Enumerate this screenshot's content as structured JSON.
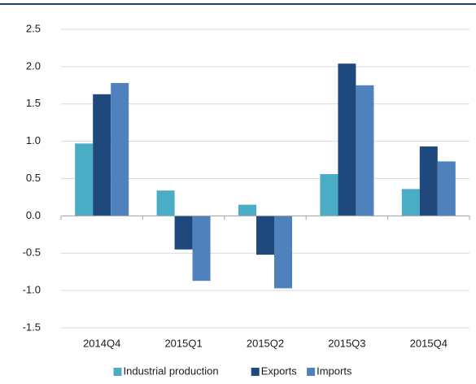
{
  "chart_data": {
    "type": "bar",
    "categories": [
      "2014Q4",
      "2015Q1",
      "2015Q2",
      "2015Q3",
      "2015Q4"
    ],
    "series": [
      {
        "name": "Industrial production",
        "color": "#4bacc6",
        "values": [
          0.97,
          0.34,
          0.15,
          0.56,
          0.36
        ]
      },
      {
        "name": "Exports",
        "color": "#1f497d",
        "values": [
          1.63,
          -0.45,
          -0.52,
          2.04,
          0.93
        ]
      },
      {
        "name": "Imports",
        "color": "#4f81bd",
        "values": [
          1.78,
          -0.87,
          -0.97,
          1.75,
          0.73
        ]
      }
    ],
    "ylim": [
      -1.5,
      2.5
    ],
    "yticks": [
      2.5,
      {
        "value": 2,
        "label": "2.0"
      },
      1.5,
      {
        "value": 1,
        "label": "1.0"
      },
      0.5,
      {
        "value": 0,
        "label": "0.0"
      },
      -0.5,
      {
        "value": -1,
        "label": "-1.0"
      },
      -1.5
    ],
    "grid": true,
    "legend": "bottom"
  }
}
